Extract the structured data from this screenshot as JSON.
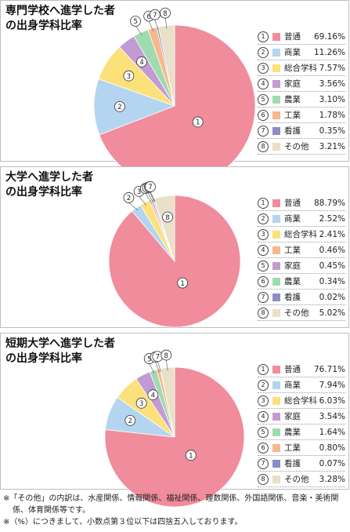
{
  "chart_data": [
    {
      "type": "pie",
      "title": "専門学校へ進学した者\nの出身学科比率",
      "slices": [
        {
          "marker": "①",
          "label": "普通",
          "value": 69.16,
          "display": "69.16%",
          "color": "#f08c9c"
        },
        {
          "marker": "②",
          "label": "商業",
          "value": 11.26,
          "display": "11.26%",
          "color": "#b4d5f0"
        },
        {
          "marker": "③",
          "label": "総合学科",
          "value": 7.57,
          "display": "7.57%",
          "color": "#fce07a"
        },
        {
          "marker": "④",
          "label": "家庭",
          "value": 3.56,
          "display": "3.56%",
          "color": "#c39bd3"
        },
        {
          "marker": "⑤",
          "label": "農業",
          "value": 3.1,
          "display": "3.10%",
          "color": "#9fdbae"
        },
        {
          "marker": "⑥",
          "label": "工業",
          "value": 1.78,
          "display": "1.78%",
          "color": "#f8b88e"
        },
        {
          "marker": "⑦",
          "label": "看護",
          "value": 0.35,
          "display": "0.35%",
          "color": "#8e8cc4"
        },
        {
          "marker": "⑧",
          "label": "その他",
          "value": 3.21,
          "display": "3.21%",
          "color": "#e9e0c8"
        }
      ]
    },
    {
      "type": "pie",
      "title": "大学へ進学した者\nの出身学科比率",
      "slices": [
        {
          "marker": "①",
          "label": "普通",
          "value": 88.79,
          "display": "88.79%",
          "color": "#f08c9c"
        },
        {
          "marker": "②",
          "label": "商業",
          "value": 2.52,
          "display": "2.52%",
          "color": "#b4d5f0"
        },
        {
          "marker": "③",
          "label": "総合学科",
          "value": 2.41,
          "display": "2.41%",
          "color": "#fce07a"
        },
        {
          "marker": "④",
          "label": "工業",
          "value": 0.46,
          "display": "0.46%",
          "color": "#f8b88e"
        },
        {
          "marker": "⑤",
          "label": "家庭",
          "value": 0.45,
          "display": "0.45%",
          "color": "#c39bd3"
        },
        {
          "marker": "⑥",
          "label": "農業",
          "value": 0.34,
          "display": "0.34%",
          "color": "#9fdbae"
        },
        {
          "marker": "⑦",
          "label": "看護",
          "value": 0.02,
          "display": "0.02%",
          "color": "#8e8cc4"
        },
        {
          "marker": "⑧",
          "label": "その他",
          "value": 5.02,
          "display": "5.02%",
          "color": "#e9e0c8"
        }
      ]
    },
    {
      "type": "pie",
      "title": "短期大学へ進学した者\nの出身学科比率",
      "slices": [
        {
          "marker": "①",
          "label": "普通",
          "value": 76.71,
          "display": "76.71%",
          "color": "#f08c9c"
        },
        {
          "marker": "②",
          "label": "商業",
          "value": 7.94,
          "display": "7.94%",
          "color": "#b4d5f0"
        },
        {
          "marker": "③",
          "label": "総合学科",
          "value": 6.03,
          "display": "6.03%",
          "color": "#fce07a"
        },
        {
          "marker": "④",
          "label": "家庭",
          "value": 3.54,
          "display": "3.54%",
          "color": "#c39bd3"
        },
        {
          "marker": "⑤",
          "label": "農業",
          "value": 1.64,
          "display": "1.64%",
          "color": "#9fdbae"
        },
        {
          "marker": "⑥",
          "label": "工業",
          "value": 0.8,
          "display": "0.80%",
          "color": "#f8b88e"
        },
        {
          "marker": "⑦",
          "label": "看護",
          "value": 0.07,
          "display": "0.07%",
          "color": "#8e8cc4"
        },
        {
          "marker": "⑧",
          "label": "その他",
          "value": 3.28,
          "display": "3.28%",
          "color": "#e9e0c8"
        }
      ]
    }
  ],
  "notes": [
    "※「その他」の内訳は、水産関係、情報関係、福祉関係、理数関係、外国語関係、音楽・美術関係、体育関係等です。",
    "※（%）につきまして、小数点第３位以下は四捨五入しております。"
  ]
}
